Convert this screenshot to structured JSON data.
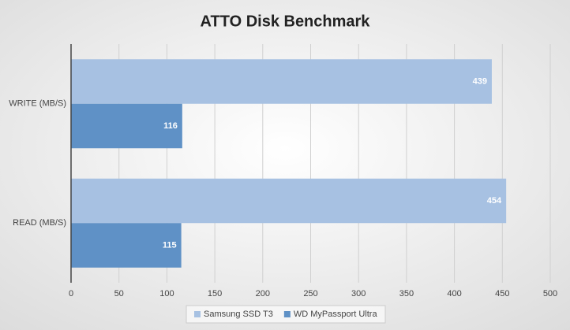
{
  "chart_data": {
    "type": "bar",
    "orientation": "horizontal",
    "title": "ATTO Disk Benchmark",
    "categories": [
      "WRITE (MB/S)",
      "READ (MB/S)"
    ],
    "series": [
      {
        "name": "Samsung SSD T3",
        "color": "#a7c1e2",
        "values": [
          439,
          454
        ]
      },
      {
        "name": "WD MyPassport Ultra",
        "color": "#5f91c6",
        "values": [
          116,
          115
        ]
      }
    ],
    "xlim": [
      0,
      500
    ],
    "xticks": [
      0,
      50,
      100,
      150,
      200,
      250,
      300,
      350,
      400,
      450,
      500
    ],
    "grid": true,
    "legend": "bottom"
  }
}
